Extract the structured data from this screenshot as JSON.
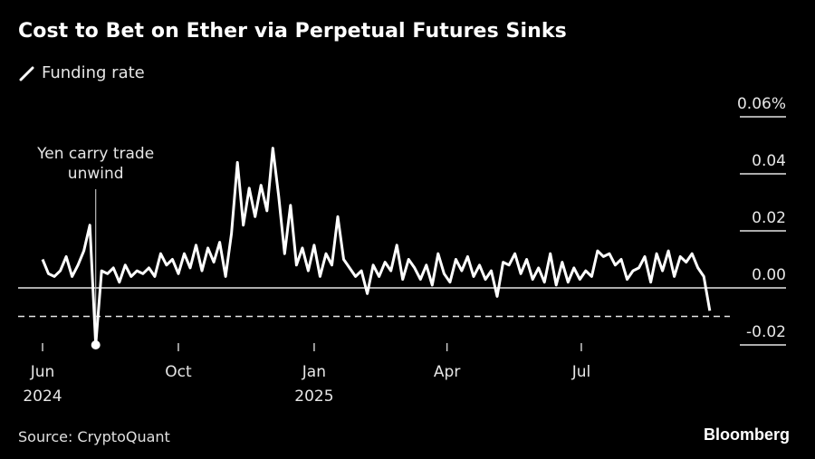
{
  "chart_data": {
    "type": "line",
    "title": "Cost to Bet on Ether via Perpetual Futures Sinks",
    "legend": [
      {
        "name": "Funding rate",
        "color": "#ffffff"
      }
    ],
    "legend_placement": "top-left",
    "x_unit": "days since first x tick",
    "x_start": 0,
    "x_step": 4,
    "series": [
      {
        "name": "Funding rate",
        "values": [
          0.01,
          0.005,
          0.004,
          0.006,
          0.011,
          0.004,
          0.008,
          0.013,
          0.022,
          -0.02,
          0.006,
          0.005,
          0.007,
          0.002,
          0.008,
          0.004,
          0.006,
          0.005,
          0.007,
          0.004,
          0.012,
          0.008,
          0.01,
          0.005,
          0.012,
          0.007,
          0.015,
          0.006,
          0.014,
          0.009,
          0.016,
          0.004,
          0.019,
          0.044,
          0.022,
          0.035,
          0.025,
          0.036,
          0.027,
          0.049,
          0.032,
          0.012,
          0.029,
          0.008,
          0.014,
          0.006,
          0.015,
          0.004,
          0.012,
          0.008,
          0.025,
          0.01,
          0.007,
          0.004,
          0.006,
          -0.002,
          0.008,
          0.004,
          0.009,
          0.006,
          0.015,
          0.003,
          0.01,
          0.007,
          0.003,
          0.008,
          0.001,
          0.012,
          0.005,
          0.002,
          0.01,
          0.006,
          0.011,
          0.004,
          0.008,
          0.003,
          0.006,
          -0.003,
          0.009,
          0.008,
          0.012,
          0.005,
          0.01,
          0.003,
          0.007,
          0.002,
          0.012,
          0.001,
          0.009,
          0.002,
          0.007,
          0.003,
          0.006,
          0.004,
          0.013,
          0.011,
          0.012,
          0.008,
          0.01,
          0.003,
          0.006,
          0.007,
          0.011,
          0.002,
          0.012,
          0.006,
          0.013,
          0.004,
          0.011,
          0.009,
          0.012,
          0.007,
          0.004,
          -0.008
        ]
      }
    ],
    "x_ticks": [
      {
        "x": 0,
        "label": "Jun",
        "sublabel": "2024"
      },
      {
        "x": 92,
        "label": "Oct",
        "sublabel": ""
      },
      {
        "x": 184,
        "label": "Jan",
        "sublabel": "2025"
      },
      {
        "x": 274,
        "label": "Apr",
        "sublabel": ""
      },
      {
        "x": 365,
        "label": "Jul",
        "sublabel": ""
      }
    ],
    "y_ticks": [
      {
        "value": 0.06,
        "label": "0.06%"
      },
      {
        "value": 0.04,
        "label": "0.04"
      },
      {
        "value": 0.02,
        "label": "0.02"
      },
      {
        "value": 0.0,
        "label": "0.00"
      },
      {
        "value": -0.02,
        "label": "-0.02"
      }
    ],
    "ylim": [
      -0.02,
      0.06
    ],
    "reference_line": {
      "value": -0.01,
      "style": "dashed"
    },
    "zero_line": 0,
    "annotation": {
      "text_line1": "Yen carry trade",
      "text_line2": "unwind",
      "point_index": 9
    },
    "grid": "right-side tick segments only"
  },
  "legend_label": "Funding rate",
  "source": "Source: CryptoQuant",
  "brand": "Bloomberg"
}
